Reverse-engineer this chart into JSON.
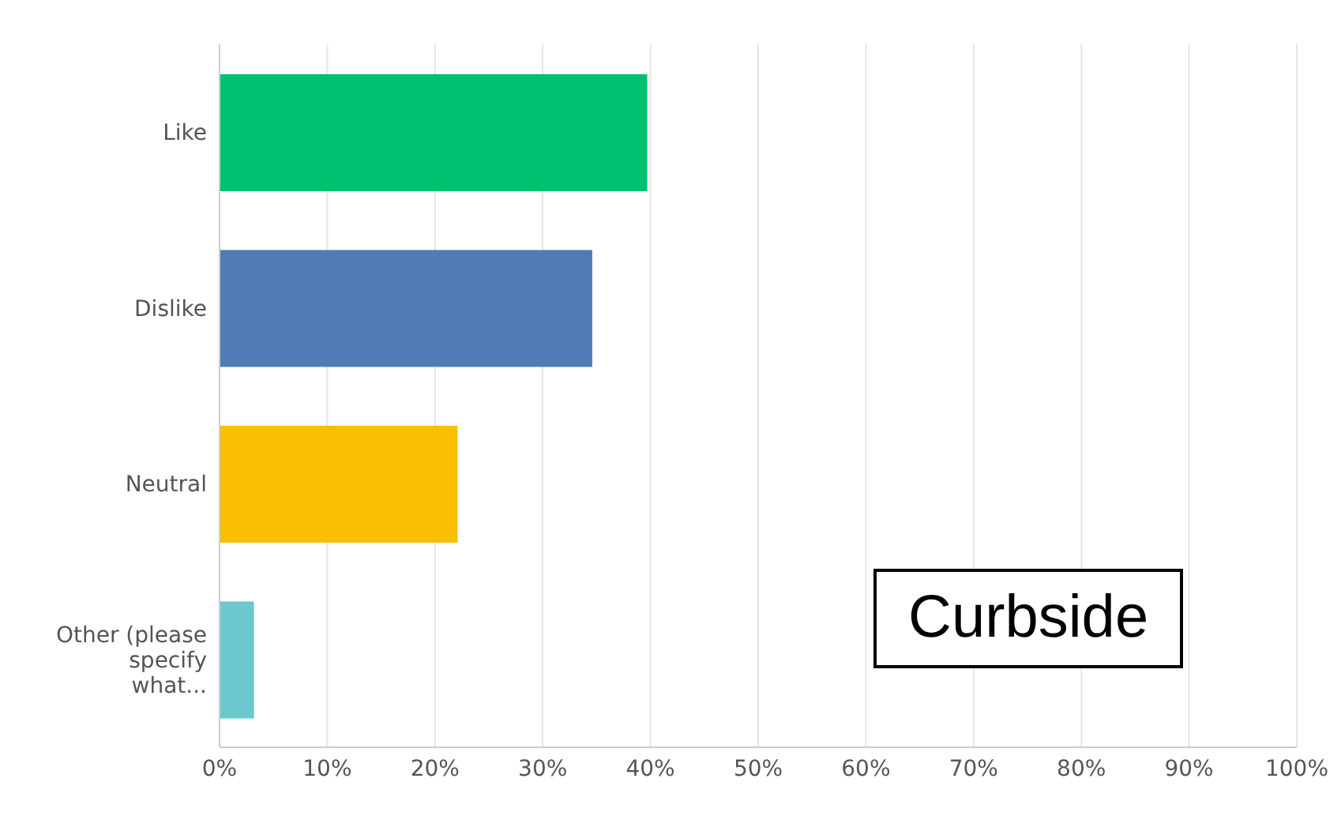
{
  "chart_data": {
    "type": "bar",
    "orientation": "horizontal",
    "categories": [
      "Like",
      "Dislike",
      "Neutral",
      "Other (please specify what..."
    ],
    "values": [
      39.7,
      34.6,
      22.1,
      3.2
    ],
    "colors": [
      "#00bf6f",
      "#507cb6",
      "#f9be00",
      "#6bc8cd"
    ],
    "xlim": [
      0,
      100
    ],
    "xticks": [
      {
        "value": 0,
        "label": "0%"
      },
      {
        "value": 10,
        "label": "10%"
      },
      {
        "value": 20,
        "label": "20%"
      },
      {
        "value": 30,
        "label": "30%"
      },
      {
        "value": 40,
        "label": "40%"
      },
      {
        "value": 50,
        "label": "50%"
      },
      {
        "value": 60,
        "label": "60%"
      },
      {
        "value": 70,
        "label": "70%"
      },
      {
        "value": 80,
        "label": "80%"
      },
      {
        "value": 90,
        "label": "90%"
      },
      {
        "value": 100,
        "label": "100%"
      }
    ],
    "grid": "x",
    "legend": false,
    "annotations": [
      "Curbside"
    ]
  }
}
